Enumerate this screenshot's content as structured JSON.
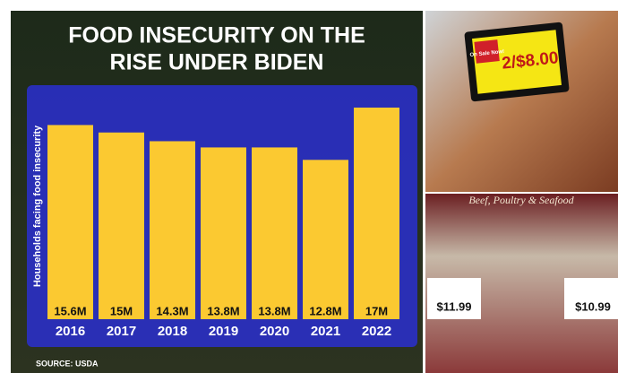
{
  "chart_data": {
    "type": "bar",
    "title": "FOOD INSECURITY ON THE RISE UNDER BIDEN",
    "y_label": "Households facing food insecurity",
    "categories": [
      "2016",
      "2017",
      "2018",
      "2019",
      "2020",
      "2021",
      "2022"
    ],
    "values": [
      15.6,
      15,
      14.3,
      13.8,
      13.8,
      12.8,
      17
    ],
    "value_labels": [
      "15.6M",
      "15M",
      "14.3M",
      "13.8M",
      "13.8M",
      "12.8M",
      "17M"
    ],
    "color": "#fbc931",
    "source": "SOURCE: USDA"
  },
  "photos": {
    "sign": "On Sale Now!",
    "price": "2/$8.00",
    "banner": "Beef, Poultry & Seafood",
    "price_left": "$11.99",
    "price_right": "$10.99"
  }
}
